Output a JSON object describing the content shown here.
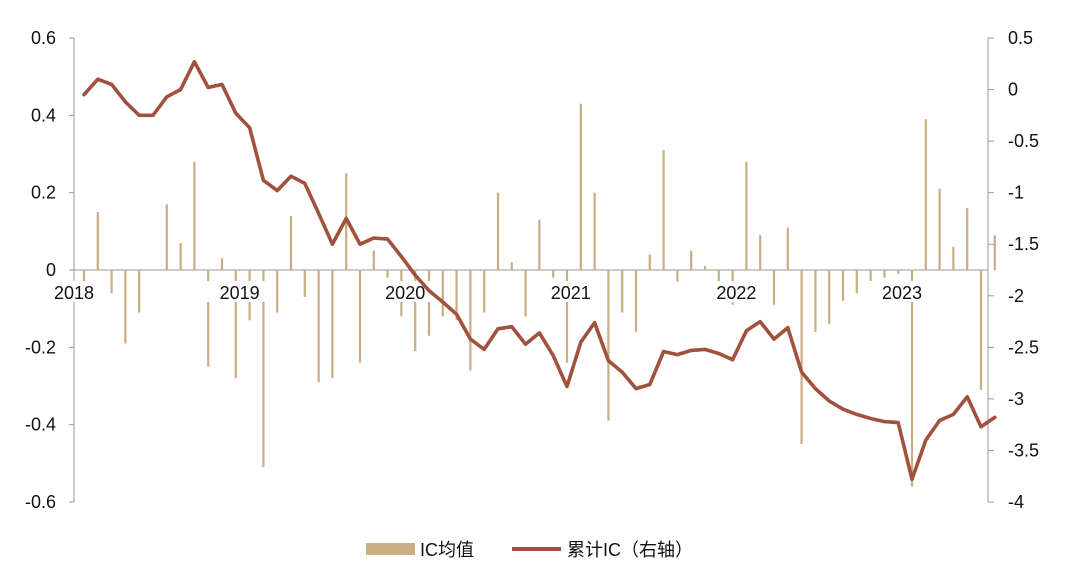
{
  "chart_data": {
    "type": "bar+line",
    "legend_position": "bottom-center",
    "grid": false,
    "left_axis": {
      "ylim": [
        -0.6,
        0.6
      ],
      "ticks": [
        -0.6,
        -0.4,
        -0.2,
        0,
        0.2,
        0.4,
        0.6
      ],
      "tick_labels": [
        "-0.6",
        "-0.4",
        "-0.2",
        "0",
        "0.2",
        "0.4",
        "0.6"
      ]
    },
    "right_axis": {
      "ylim": [
        -4,
        0.5
      ],
      "ticks": [
        -4,
        -3.5,
        -3,
        -2.5,
        -2,
        -1.5,
        -1,
        -0.5,
        0,
        0.5
      ],
      "tick_labels": [
        "-4",
        "-3.5",
        "-3",
        "-2.5",
        "-2",
        "-1.5",
        "-1",
        "-0.5",
        "0",
        "0.5"
      ]
    },
    "x_axis": {
      "year_labels": [
        "2018",
        "2019",
        "2020",
        "2021",
        "2022",
        "2023"
      ],
      "year_start_index": [
        0,
        12,
        24,
        36,
        48,
        60
      ]
    },
    "series": [
      {
        "name": "IC均值",
        "kind": "bar",
        "axis": "left",
        "color": "#C9AE84",
        "values": [
          -0.04,
          0.15,
          -0.06,
          -0.19,
          -0.11,
          0.0,
          0.17,
          0.07,
          0.28,
          -0.25,
          0.03,
          -0.28,
          -0.13,
          -0.51,
          -0.11,
          0.14,
          -0.07,
          -0.29,
          -0.28,
          0.25,
          -0.24,
          0.05,
          -0.02,
          -0.12,
          -0.21,
          -0.17,
          -0.12,
          -0.13,
          -0.26,
          -0.11,
          0.2,
          0.02,
          -0.12,
          0.13,
          -0.02,
          -0.24,
          0.43,
          0.2,
          -0.39,
          -0.11,
          -0.16,
          0.04,
          0.31,
          -0.03,
          0.05,
          0.01,
          -0.04,
          -0.09,
          0.28,
          0.09,
          -0.09,
          0.11,
          -0.45,
          -0.16,
          -0.14,
          -0.08,
          -0.06,
          -0.04,
          -0.02,
          -0.01,
          -0.56,
          0.39,
          0.21,
          0.06,
          0.16,
          -0.31,
          0.09
        ]
      },
      {
        "name": "累计IC（右轴）",
        "kind": "line",
        "axis": "right",
        "color": "#A0523D",
        "values": [
          -0.05,
          0.1,
          0.05,
          -0.12,
          -0.25,
          -0.25,
          -0.07,
          0.0,
          0.27,
          0.02,
          0.05,
          -0.23,
          -0.37,
          -0.88,
          -0.98,
          -0.84,
          -0.91,
          -1.2,
          -1.5,
          -1.25,
          -1.5,
          -1.44,
          -1.45,
          -1.62,
          -1.8,
          -1.95,
          -2.06,
          -2.18,
          -2.42,
          -2.52,
          -2.32,
          -2.3,
          -2.47,
          -2.36,
          -2.58,
          -2.88,
          -2.45,
          -2.26,
          -2.63,
          -2.74,
          -2.9,
          -2.86,
          -2.54,
          -2.57,
          -2.53,
          -2.52,
          -2.56,
          -2.62,
          -2.34,
          -2.25,
          -2.42,
          -2.31,
          -2.74,
          -2.9,
          -3.02,
          -3.1,
          -3.15,
          -3.19,
          -3.22,
          -3.23,
          -3.78,
          -3.4,
          -3.21,
          -3.15,
          -2.98,
          -3.27,
          -3.18
        ]
      }
    ]
  }
}
